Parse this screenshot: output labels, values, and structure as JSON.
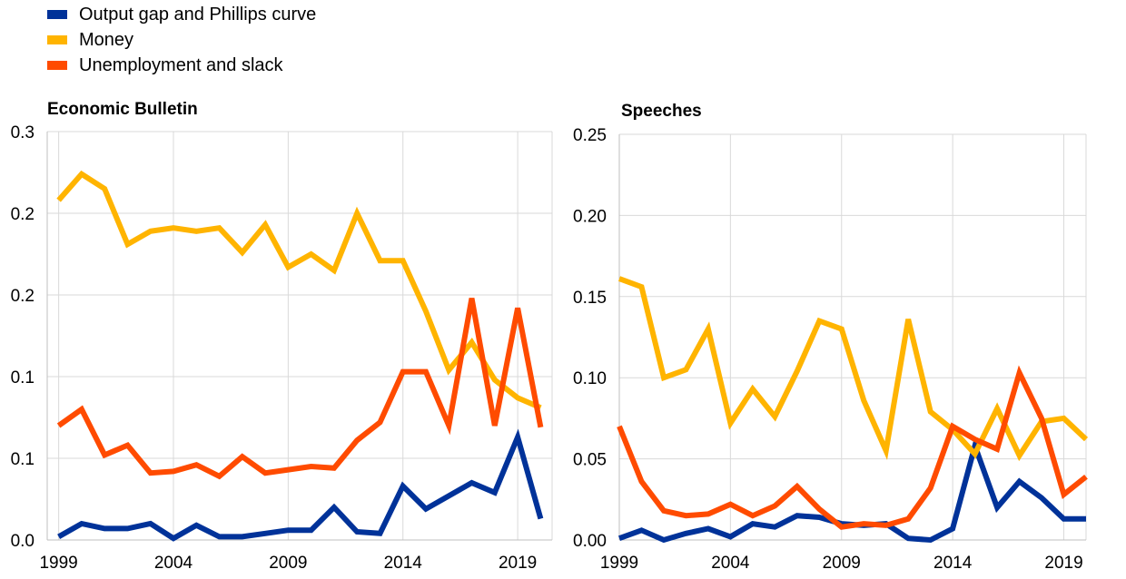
{
  "legend": [
    {
      "label": "Output gap and Phillips curve",
      "color": "#003299"
    },
    {
      "label": "Money",
      "color": "#FFB400"
    },
    {
      "label": "Unemployment and slack",
      "color": "#FF4B00"
    }
  ],
  "chart_data": [
    {
      "type": "line",
      "title": "Economic Bulletin",
      "xlabel": "",
      "ylabel": "",
      "grid": true,
      "xlim": [
        1998.5,
        2020.5
      ],
      "ylim": [
        0,
        0.25
      ],
      "x_ticks": [
        1999,
        2004,
        2009,
        2014,
        2019
      ],
      "x_tick_labels": [
        "1999",
        "2004",
        "2009",
        "2014",
        "2019"
      ],
      "y_ticks": [
        0,
        0.05,
        0.1,
        0.15,
        0.2,
        0.25
      ],
      "y_tick_labels": [
        "0.0",
        "0.1",
        "0.1",
        "0.2",
        "0.2",
        "0.3"
      ],
      "x": [
        1999,
        2000,
        2001,
        2002,
        2003,
        2004,
        2005,
        2006,
        2007,
        2008,
        2009,
        2010,
        2011,
        2012,
        2013,
        2014,
        2015,
        2016,
        2017,
        2018,
        2019,
        2020
      ],
      "series": [
        {
          "name": "Output gap and Phillips curve",
          "color": "#003299",
          "values": [
            0.002,
            0.01,
            0.007,
            0.007,
            0.01,
            0.001,
            0.009,
            0.002,
            0.002,
            0.004,
            0.006,
            0.006,
            0.02,
            0.005,
            0.004,
            0.033,
            0.019,
            0.027,
            0.035,
            0.029,
            0.063,
            0.013
          ]
        },
        {
          "name": "Money",
          "color": "#FFB400",
          "values": [
            0.208,
            0.224,
            0.215,
            0.181,
            0.189,
            0.191,
            0.189,
            0.191,
            0.176,
            0.193,
            0.167,
            0.175,
            0.165,
            0.2,
            0.171,
            0.171,
            0.14,
            0.104,
            0.121,
            0.098,
            0.087,
            0.081
          ]
        },
        {
          "name": "Unemployment and slack",
          "color": "#FF4B00",
          "values": [
            0.07,
            0.08,
            0.052,
            0.058,
            0.041,
            0.042,
            0.046,
            0.039,
            0.051,
            0.041,
            0.043,
            0.045,
            0.044,
            0.061,
            0.072,
            0.103,
            0.103,
            0.07,
            0.148,
            0.07,
            0.142,
            0.069
          ]
        }
      ]
    },
    {
      "type": "line",
      "title": "Speeches",
      "xlabel": "",
      "ylabel": "",
      "grid": true,
      "xlim": [
        1999,
        2020
      ],
      "ylim": [
        0,
        0.25
      ],
      "x_ticks": [
        1999,
        2004,
        2009,
        2014,
        2019
      ],
      "x_tick_labels": [
        "1999",
        "2004",
        "2009",
        "2014",
        "2019"
      ],
      "y_ticks": [
        0,
        0.05,
        0.1,
        0.15,
        0.2,
        0.25
      ],
      "y_tick_labels": [
        "0.00",
        "0.05",
        "0.10",
        "0.15",
        "0.20",
        "0.25"
      ],
      "x": [
        1999,
        2000,
        2001,
        2002,
        2003,
        2004,
        2005,
        2006,
        2007,
        2008,
        2009,
        2010,
        2011,
        2012,
        2013,
        2014,
        2015,
        2016,
        2017,
        2018,
        2019,
        2020
      ],
      "series": [
        {
          "name": "Output gap and Phillips curve",
          "color": "#003299",
          "values": [
            0.001,
            0.006,
            0.0,
            0.004,
            0.007,
            0.002,
            0.01,
            0.008,
            0.015,
            0.014,
            0.01,
            0.009,
            0.01,
            0.001,
            0.0,
            0.007,
            0.058,
            0.02,
            0.036,
            0.026,
            0.013,
            0.013
          ]
        },
        {
          "name": "Money",
          "color": "#FFB400",
          "values": [
            0.161,
            0.156,
            0.1,
            0.105,
            0.13,
            0.072,
            0.093,
            0.076,
            0.104,
            0.135,
            0.13,
            0.086,
            0.055,
            0.136,
            0.079,
            0.068,
            0.053,
            0.081,
            0.052,
            0.073,
            0.075,
            0.062
          ]
        },
        {
          "name": "Unemployment and slack",
          "color": "#FF4B00",
          "values": [
            0.07,
            0.036,
            0.018,
            0.015,
            0.016,
            0.022,
            0.015,
            0.021,
            0.033,
            0.019,
            0.008,
            0.01,
            0.009,
            0.013,
            0.032,
            0.07,
            0.062,
            0.056,
            0.103,
            0.075,
            0.028,
            0.039
          ]
        }
      ]
    }
  ]
}
